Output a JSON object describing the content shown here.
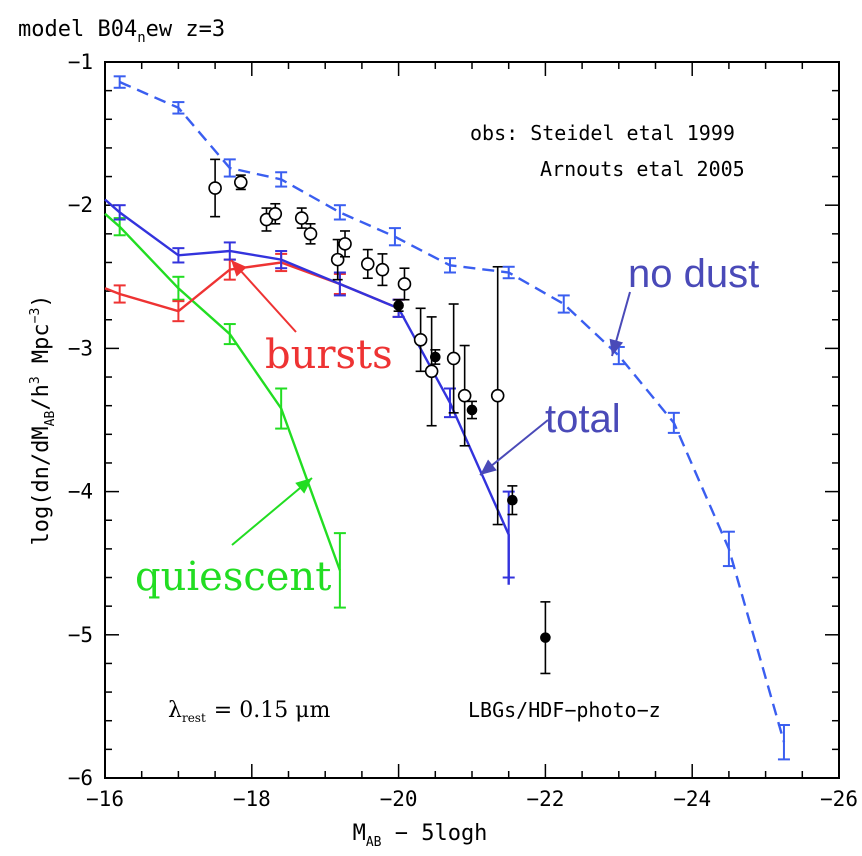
{
  "chart_data": {
    "type": "line",
    "title_parts": {
      "pre": "model B04",
      "sub": "n",
      "post": "ew z=3"
    },
    "xlabel_parts": {
      "pre": "M",
      "sub": "AB",
      "post": " − 5logh"
    },
    "ylabel_parts": {
      "pre": "log(dn/dM",
      "sub": "AB",
      "mid": "/h",
      "sup": "3",
      "mid2": " Mpc",
      "sup2": "−3",
      "post": ")"
    },
    "xlim": [
      -16,
      -26
    ],
    "ylim": [
      -6,
      -1
    ],
    "xticks": [
      -16,
      -18,
      -20,
      -22,
      -24,
      -26
    ],
    "yticks": [
      -1,
      -2,
      -3,
      -4,
      -5,
      -6
    ],
    "xtick_labels": [
      "−16",
      "−18",
      "−20",
      "−22",
      "−24",
      "−26"
    ],
    "ytick_labels": [
      "−1",
      "−2",
      "−3",
      "−4",
      "−5",
      "−6"
    ],
    "annotations": {
      "obs_line1": "obs: Steidel etal 1999",
      "obs_line2": "Arnouts etal 2005",
      "lambda_text": "= 0.15 μm",
      "lambda_symbol": "λ",
      "lambda_sub": "rest",
      "lbg_text": "LBGs/HDF−photo−z",
      "label_no_dust": "no dust",
      "label_total": "total",
      "label_bursts": "bursts",
      "label_quiescent": "quiescent"
    },
    "colors": {
      "no_dust": "#3a5ef0",
      "total": "#3333dd",
      "bursts": "#ee3333",
      "quiescent": "#22dd22",
      "label_blue": "#4a4ab8",
      "points": "#000000"
    },
    "series": [
      {
        "name": "no dust",
        "style": "dashed",
        "x": [
          -16.2,
          -17.0,
          -17.7,
          -18.4,
          -19.2,
          -19.95,
          -20.7,
          -21.5,
          -22.25,
          -23.0,
          -23.75,
          -24.5,
          -25.25
        ],
        "y": [
          -1.14,
          -1.32,
          -1.74,
          -1.82,
          -2.05,
          -2.22,
          -2.42,
          -2.47,
          -2.69,
          -3.05,
          -3.52,
          -4.4,
          -5.75
        ],
        "err": [
          0.04,
          0.04,
          0.06,
          0.05,
          0.05,
          0.06,
          0.05,
          0.04,
          0.06,
          0.06,
          0.07,
          0.12,
          0.12
        ]
      },
      {
        "name": "total",
        "style": "solid",
        "x": [
          -16,
          -16.2,
          -17.0,
          -17.7,
          -18.4,
          -19.2,
          -20.0,
          -20.7,
          -21.5,
          -21.5
        ],
        "y": [
          -1.96,
          -2.05,
          -2.35,
          -2.32,
          -2.38,
          -2.55,
          -2.72,
          -3.38,
          -4.3,
          -4.65
        ],
        "err": [
          0,
          0.05,
          0.05,
          0.06,
          0.06,
          0.08,
          0.06,
          0.1,
          0.3,
          0
        ]
      },
      {
        "name": "bursts",
        "style": "solid",
        "x": [
          -16,
          -16.2,
          -17.0,
          -17.7,
          -18.4,
          -19.2,
          -20.0
        ],
        "y": [
          -2.58,
          -2.62,
          -2.74,
          -2.45,
          -2.4,
          -2.55,
          -2.72
        ],
        "err": [
          0,
          0.06,
          0.07,
          0.07,
          0.06,
          0.07,
          0.06
        ]
      },
      {
        "name": "quiescent",
        "style": "solid",
        "x": [
          -16,
          -16.2,
          -17.0,
          -17.7,
          -18.4,
          -19.2
        ],
        "y": [
          -2.06,
          -2.15,
          -2.58,
          -2.9,
          -3.42,
          -4.55
        ],
        "err": [
          0,
          0.06,
          0.08,
          0.07,
          0.14,
          0.26
        ]
      }
    ],
    "observations_open": {
      "x": [
        -17.5,
        -17.85,
        -18.2,
        -18.32,
        -18.68,
        -18.8,
        -19.17,
        -19.27,
        -19.58,
        -19.78,
        -20.08,
        -20.3,
        -20.45,
        -20.75,
        -20.9,
        -21.35
      ],
      "y": [
        -1.88,
        -1.84,
        -2.1,
        -2.06,
        -2.09,
        -2.2,
        -2.38,
        -2.27,
        -2.41,
        -2.45,
        -2.55,
        -2.94,
        -3.16,
        -3.07,
        -3.33,
        -3.33
      ],
      "err": [
        0.2,
        0.05,
        0.08,
        0.07,
        0.07,
        0.07,
        0.14,
        0.09,
        0.1,
        0.11,
        0.11,
        0.22,
        0.38,
        0.38,
        0.35,
        0.9
      ]
    },
    "observations_filled": {
      "x": [
        -20.0,
        -20.5,
        -21.0,
        -21.55,
        -22.0
      ],
      "y": [
        -2.7,
        -3.06,
        -3.43,
        -4.06,
        -5.02
      ],
      "err": [
        0.04,
        0.05,
        0.06,
        0.1,
        0.25
      ]
    }
  }
}
